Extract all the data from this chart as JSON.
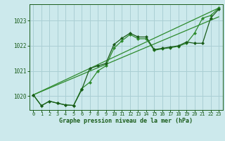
{
  "title": "Graphe pression niveau de la mer (hPa)",
  "bg_color": "#cce9ec",
  "grid_color": "#aacfd4",
  "line_color_dark": "#1a5c1a",
  "line_color_light": "#2e8b2e",
  "xlim": [
    -0.5,
    23.5
  ],
  "ylim": [
    1019.45,
    1023.65
  ],
  "yticks": [
    1020,
    1021,
    1022,
    1023
  ],
  "xticks": [
    0,
    1,
    2,
    3,
    4,
    5,
    6,
    7,
    8,
    9,
    10,
    11,
    12,
    13,
    14,
    15,
    16,
    17,
    18,
    19,
    20,
    21,
    22,
    23
  ],
  "series_main": {
    "x": [
      0,
      1,
      2,
      3,
      4,
      5,
      6,
      7,
      8,
      9,
      10,
      11,
      12,
      13,
      14,
      15,
      16,
      17,
      18,
      19,
      20,
      21,
      22,
      23
    ],
    "y": [
      1020.05,
      1019.62,
      1019.8,
      1019.72,
      1019.65,
      1019.63,
      1020.25,
      1021.1,
      1021.2,
      1021.3,
      1022.05,
      1022.3,
      1022.5,
      1022.35,
      1022.35,
      1021.85,
      1021.9,
      1021.95,
      1022.0,
      1022.15,
      1022.1,
      1022.1,
      1023.1,
      1023.45
    ]
  },
  "series_secondary": {
    "x": [
      0,
      1,
      2,
      3,
      4,
      5,
      6,
      7,
      8,
      9,
      10,
      11,
      12,
      13,
      14,
      15,
      16,
      17,
      18,
      19,
      20,
      21,
      22,
      23
    ],
    "y": [
      1020.05,
      1019.62,
      1019.8,
      1019.72,
      1019.65,
      1019.63,
      1020.3,
      1020.55,
      1021.0,
      1021.2,
      1021.9,
      1022.2,
      1022.45,
      1022.28,
      1022.28,
      1021.82,
      1021.88,
      1021.92,
      1021.98,
      1022.1,
      1022.5,
      1023.1,
      1023.2,
      1023.5
    ]
  },
  "trend1": {
    "x": [
      0,
      23
    ],
    "y": [
      1020.05,
      1023.5
    ]
  },
  "trend2": {
    "x": [
      0,
      23
    ],
    "y": [
      1020.05,
      1023.15
    ]
  }
}
